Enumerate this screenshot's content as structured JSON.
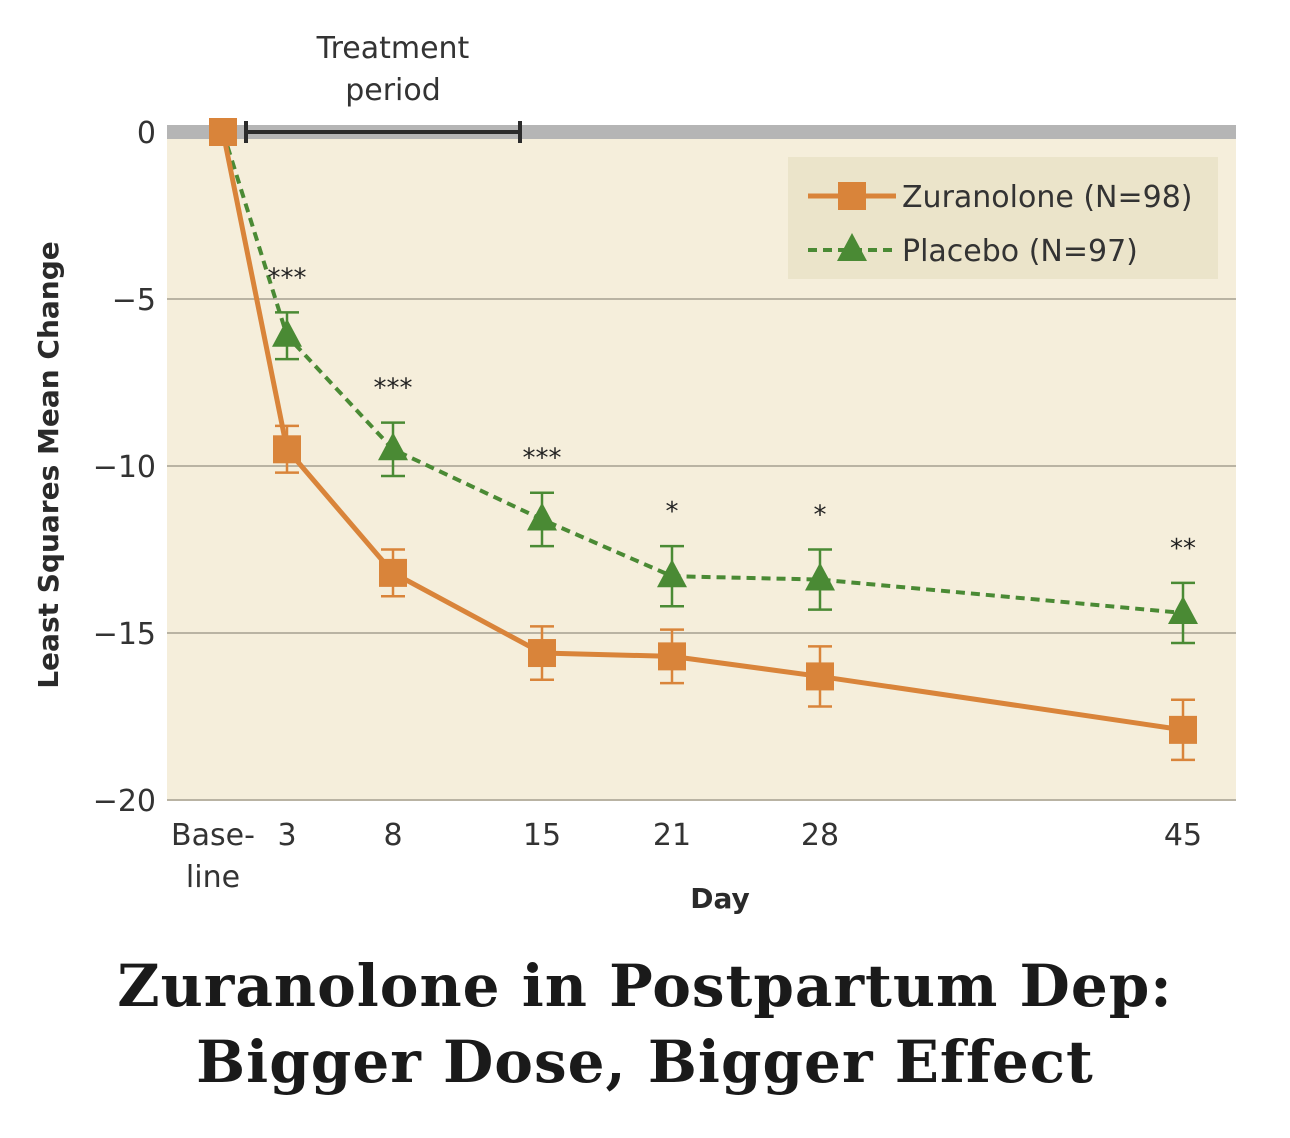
{
  "chart_data": {
    "type": "line",
    "ylabel": "Least Squares Mean Change",
    "xlabel": "Day",
    "ylim": [
      -20,
      0
    ],
    "yticks": [
      0,
      -5,
      -10,
      -15,
      -20
    ],
    "ytick_labels": [
      "0",
      "−5",
      "−10",
      "−15",
      "−20"
    ],
    "x": [
      0,
      3,
      8,
      15,
      21,
      28,
      45
    ],
    "xtick_labels": [
      [
        "Base-",
        "line"
      ],
      [
        "3"
      ],
      [
        "8"
      ],
      [
        "15"
      ],
      [
        "21"
      ],
      [
        "28"
      ],
      [
        "45"
      ]
    ],
    "grid": true,
    "legend_position": "top-right",
    "annotation": {
      "label_lines": [
        "Treatment",
        "period"
      ],
      "x_range": [
        0,
        15
      ]
    },
    "series": [
      {
        "name": "Zuranolone (N=98)",
        "color": "#d9843a",
        "marker": "square",
        "line_style": "solid",
        "values": [
          0,
          -9.5,
          -13.2,
          -15.6,
          -15.7,
          -16.3,
          -17.9
        ],
        "error": [
          0,
          0.7,
          0.7,
          0.8,
          0.8,
          0.9,
          0.9
        ]
      },
      {
        "name": "Placebo (N=97)",
        "color": "#4a8a34",
        "marker": "triangle",
        "line_style": "dashed",
        "values": [
          0,
          -6.1,
          -9.5,
          -11.6,
          -13.3,
          -13.4,
          -14.4
        ],
        "error": [
          0,
          0.7,
          0.8,
          0.8,
          0.9,
          0.9,
          0.9
        ]
      }
    ],
    "significance": [
      {
        "x": 3,
        "label": "***"
      },
      {
        "x": 8,
        "label": "***"
      },
      {
        "x": 15,
        "label": "***"
      },
      {
        "x": 21,
        "label": "*"
      },
      {
        "x": 28,
        "label": "*"
      },
      {
        "x": 45,
        "label": "**"
      }
    ]
  },
  "headline": {
    "line1": "Zuranolone in Postpartum Dep:",
    "line2": "Bigger Dose, Bigger Effect"
  },
  "colors": {
    "plot_bg": "#f5eedb",
    "zero_band": "#b5b5b5",
    "grid": "#b9b3a3",
    "legend_bg": "#ebe4ca"
  }
}
